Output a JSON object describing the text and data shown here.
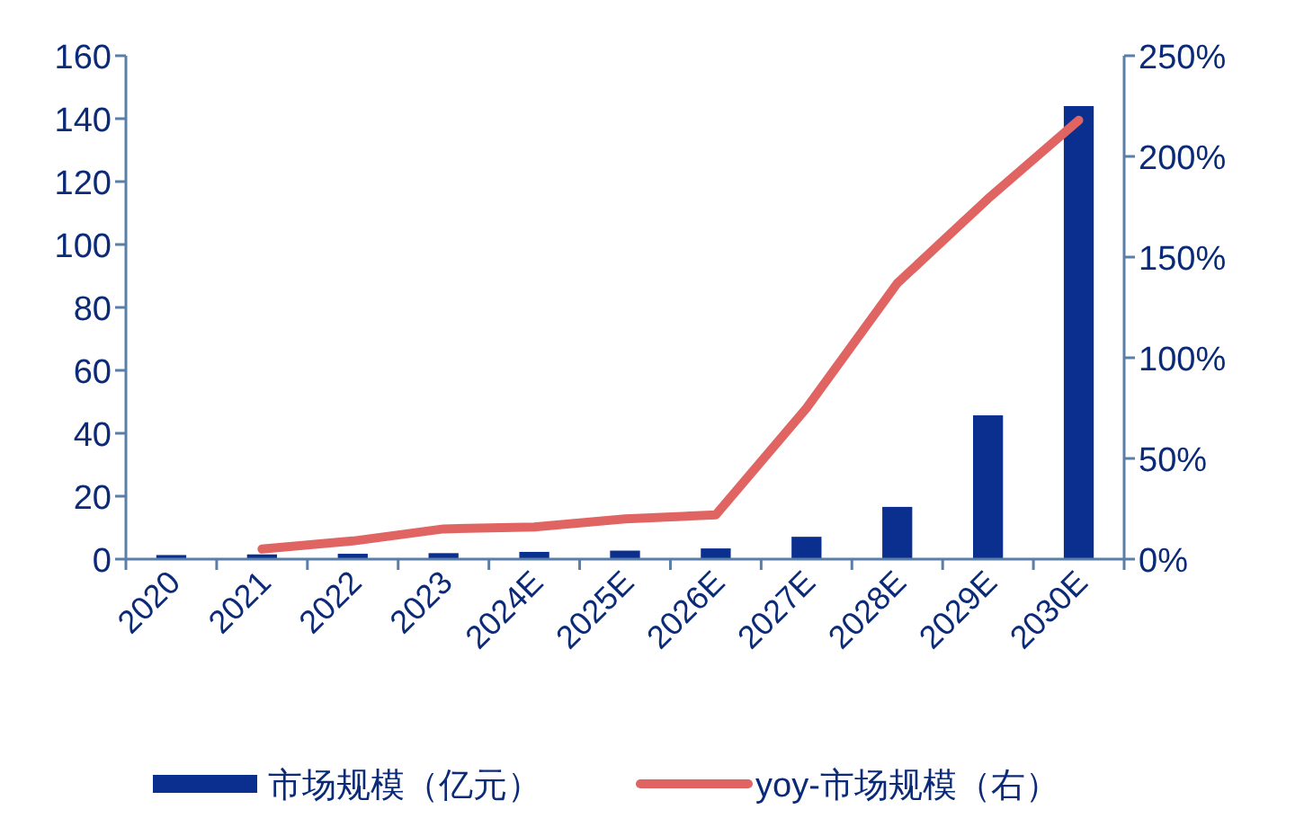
{
  "chart_data": {
    "type": "bar",
    "categories": [
      "2020",
      "2021",
      "2022",
      "2023",
      "2024E",
      "2025E",
      "2026E",
      "2027E",
      "2028E",
      "2029E",
      "2030E"
    ],
    "series": [
      {
        "name": "市场规模（亿元）",
        "color": "#0b2f8f",
        "values": [
          1.3,
          1.5,
          1.7,
          1.9,
          2.3,
          2.7,
          3.4,
          7.1,
          16.6,
          45.7,
          144
        ]
      },
      {
        "name": "yoy-市场规模（右）",
        "type": "line",
        "axis": "y2",
        "color": "#e06462",
        "values": [
          null,
          5,
          9,
          15,
          16,
          20,
          22,
          75,
          137,
          179,
          218
        ]
      }
    ],
    "ylim": [
      0,
      160
    ],
    "yticks": [
      0,
      20,
      40,
      60,
      80,
      100,
      120,
      140,
      160
    ],
    "y2lim": [
      0,
      250
    ],
    "y2ticks": [
      {
        "value": 0,
        "label": "0%"
      },
      {
        "value": 50,
        "label": "50%"
      },
      {
        "value": 100,
        "label": "100%"
      },
      {
        "value": 150,
        "label": "150%"
      },
      {
        "value": 200,
        "label": "200%"
      },
      {
        "value": 250,
        "label": "250%"
      }
    ],
    "legend": "bottom",
    "marker": "none",
    "line_style": "solid",
    "grid": false
  }
}
